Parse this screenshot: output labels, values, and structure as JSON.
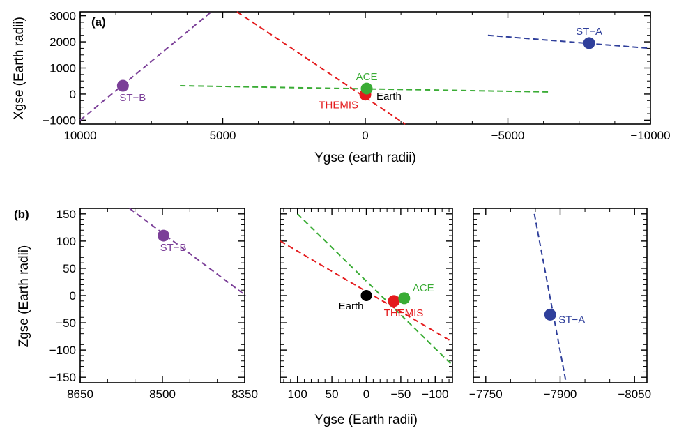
{
  "chart_data": [
    {
      "type": "scatter",
      "panel_tag": "(a)",
      "xlabel": "Ygse (earth radii)",
      "ylabel": "Xgse (Earth radii)",
      "xlim": [
        10000,
        -10000
      ],
      "ylim": [
        -1150,
        3150
      ],
      "xticks": [
        10000,
        5000,
        0,
        -5000,
        -10000
      ],
      "xtick_labels": [
        "10000",
        "5000",
        "0",
        "−5000",
        "−10000"
      ],
      "yticks": [
        3000,
        2000,
        1000,
        0,
        -1000
      ],
      "ytick_labels": [
        "3000",
        "2000",
        "1000",
        "0",
        "−1000"
      ],
      "series": [
        {
          "name": "ST−B",
          "color": "#7b3f98",
          "point": [
            8500,
            320
          ],
          "line": [
            [
              10000,
              -1000
            ],
            [
              5400,
              3150
            ]
          ],
          "label_anchor": "below"
        },
        {
          "name": "THEMIS",
          "color": "#e41a1c",
          "point": [
            0,
            -20
          ],
          "line": [
            [
              4500,
              3150
            ],
            [
              -1400,
              -1150
            ]
          ],
          "label_anchor": "left-below"
        },
        {
          "name": "ACE",
          "color": "#3aac35",
          "point": [
            -50,
            210
          ],
          "line": [
            [
              6500,
              320
            ],
            [
              -6500,
              80
            ]
          ],
          "label_anchor": "above"
        },
        {
          "name": "ST−A",
          "color": "#2f3f9b",
          "point": [
            -7850,
            1950
          ],
          "line": [
            [
              -4300,
              2250
            ],
            [
              -10000,
              1750
            ]
          ],
          "label_anchor": "above"
        }
      ],
      "reference": {
        "name": "Earth",
        "point": [
          0,
          0
        ],
        "color": "#000000"
      }
    },
    {
      "type": "scatter",
      "panel_tag": "(b)",
      "xlabel": "",
      "ylabel": "Zgse (Earth radii)",
      "xlim": [
        8650,
        8350
      ],
      "ylim": [
        -160,
        160
      ],
      "xticks": [
        8650,
        8500,
        8350
      ],
      "xtick_labels": [
        "8650",
        "8500",
        "8350"
      ],
      "yticks": [
        150,
        100,
        50,
        0,
        -50,
        -100,
        -150
      ],
      "ytick_labels": [
        "150",
        "100",
        "50",
        "0",
        "−50",
        "−100",
        "−150"
      ],
      "series": [
        {
          "name": "ST−B",
          "color": "#7b3f98",
          "point": [
            8498,
            110
          ],
          "line": [
            [
              8560,
              160
            ],
            [
              8348,
              0
            ]
          ],
          "label_anchor": "below"
        }
      ]
    },
    {
      "type": "scatter",
      "panel_tag": "",
      "xlabel": "Ygse (Earth radii)",
      "ylabel": "",
      "xlim": [
        125,
        -125
      ],
      "ylim": [
        -160,
        160
      ],
      "xticks": [
        100,
        50,
        0,
        -50,
        -100
      ],
      "xtick_labels": [
        "100",
        "50",
        "0",
        "−50",
        "−100"
      ],
      "series": [
        {
          "name": "THEMIS",
          "color": "#e41a1c",
          "point": [
            -40,
            -10
          ],
          "line": [
            [
              125,
              100
            ],
            [
              -125,
              -85
            ]
          ],
          "label_anchor": "below"
        },
        {
          "name": "ACE",
          "color": "#3aac35",
          "point": [
            -55,
            -5
          ],
          "line": [
            [
              100,
              150
            ],
            [
              -125,
              -128
            ]
          ],
          "label_anchor": "right-above"
        }
      ],
      "reference": {
        "name": "Earth",
        "point": [
          0,
          0
        ],
        "color": "#000000"
      }
    },
    {
      "type": "scatter",
      "panel_tag": "",
      "xlabel": "",
      "ylabel": "",
      "xlim": [
        -7725,
        -8075
      ],
      "ylim": [
        -160,
        160
      ],
      "xticks": [
        -7750,
        -7900,
        -8050
      ],
      "xtick_labels": [
        "−7750",
        "−7900",
        "−8050"
      ],
      "series": [
        {
          "name": "ST−A",
          "color": "#2f3f9b",
          "point": [
            -7880,
            -35
          ],
          "line": [
            [
              -7848,
              150
            ],
            [
              -7912,
              -160
            ]
          ],
          "label_anchor": "right"
        }
      ]
    }
  ]
}
